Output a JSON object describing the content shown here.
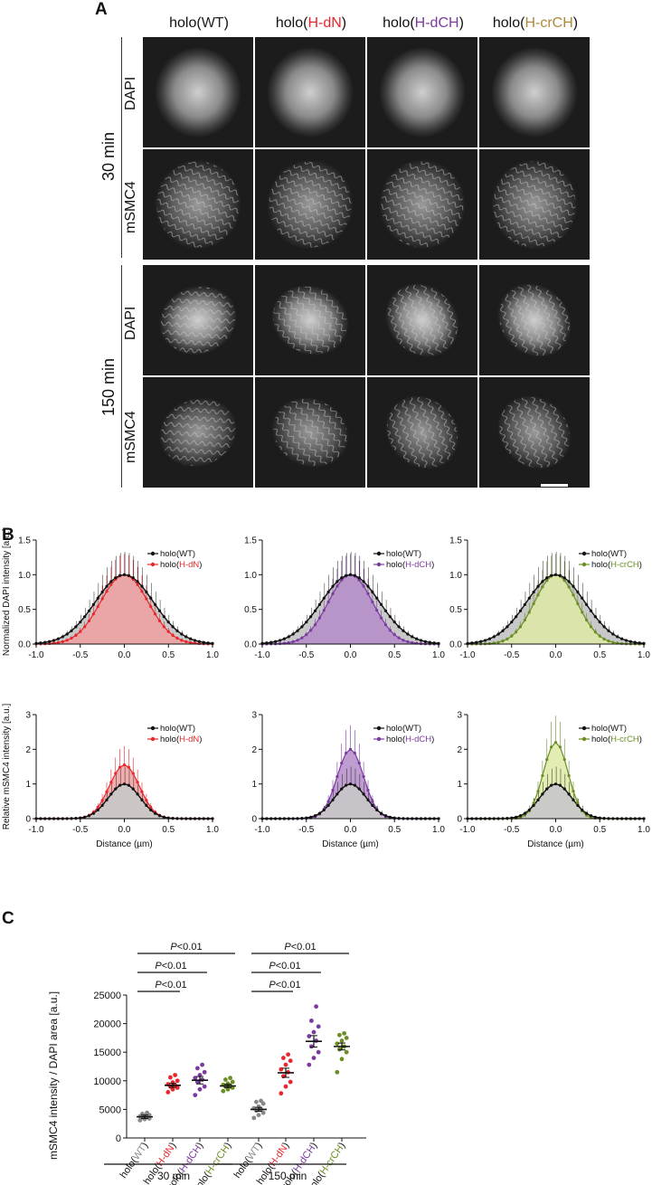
{
  "panels": {
    "A": "A",
    "B": "B",
    "C": "C"
  },
  "panelA": {
    "columns": [
      {
        "pre": "holo(",
        "mid": "WT",
        "post": ")",
        "color": "#222222"
      },
      {
        "pre": "holo(",
        "mid": "H-dN",
        "post": ")",
        "color": "#e8262b"
      },
      {
        "pre": "holo(",
        "mid": "H-dCH",
        "post": ")",
        "color": "#7a3aa0"
      },
      {
        "pre": "holo(",
        "mid": "H-crCH",
        "post": ")",
        "color": "#b08a3a"
      }
    ],
    "time_labels": [
      "30 min",
      "150 min"
    ],
    "row_labels": [
      "DAPI",
      "mSMC4",
      "DAPI",
      "mSMC4"
    ]
  },
  "chart_data": [
    {
      "type": "area",
      "ylabel": "Normalized DAPI intensity [a.u.]",
      "xlabel": "",
      "ylim": [
        0,
        1.5
      ],
      "xlim": [
        -1,
        1
      ],
      "yticks": [
        "0.0",
        "0.5",
        "1.0",
        "1.5"
      ],
      "xticks": [
        "-1.0",
        "-0.5",
        "0.0",
        "0.5",
        "1.0"
      ],
      "legend": [
        "holo(WT)",
        "holo(H-dN)"
      ],
      "legend_pre": "holo(",
      "legend_mid": "H-dN",
      "legend_post": ")",
      "color": "#e8262b",
      "fill": "#f0a0a0",
      "wt_sigma": 0.33,
      "mut_sigma": 0.27,
      "mut_peak": 1.0
    },
    {
      "type": "area",
      "ylabel": "",
      "xlabel": "",
      "ylim": [
        0,
        1.5
      ],
      "xlim": [
        -1,
        1
      ],
      "yticks": [
        "0.0",
        "0.5",
        "1.0",
        "1.5"
      ],
      "xticks": [
        "-1.0",
        "-0.5",
        "0.0",
        "0.5",
        "1.0"
      ],
      "legend": [
        "holo(WT)",
        "holo(H-dCH)"
      ],
      "legend_pre": "holo(",
      "legend_mid": "H-dCH",
      "legend_post": ")",
      "color": "#7a3aa0",
      "fill": "#b48cc8",
      "wt_sigma": 0.33,
      "mut_sigma": 0.25,
      "mut_peak": 1.0
    },
    {
      "type": "area",
      "ylabel": "",
      "xlabel": "",
      "ylim": [
        0,
        1.5
      ],
      "xlim": [
        -1,
        1
      ],
      "yticks": [
        "0.0",
        "0.5",
        "1.0",
        "1.5"
      ],
      "xticks": [
        "-1.0",
        "-0.5",
        "0.0",
        "0.5",
        "1.0"
      ],
      "legend": [
        "holo(WT)",
        "holo(H-crCH)"
      ],
      "legend_pre": "holo(",
      "legend_mid": "H-crCH",
      "legend_post": ")",
      "color": "#6b8e23",
      "fill": "#dde9a6",
      "wt_sigma": 0.33,
      "mut_sigma": 0.24,
      "mut_peak": 1.0
    },
    {
      "type": "area",
      "ylabel": "Relative mSMC4 intensity [a.u.]",
      "xlabel": "Distance (µm)",
      "ylim": [
        0,
        3
      ],
      "xlim": [
        -1,
        1
      ],
      "yticks": [
        "0",
        "1",
        "2",
        "3"
      ],
      "xticks": [
        "-1.0",
        "-0.5",
        "0.0",
        "0.5",
        "1.0"
      ],
      "legend": [
        "holo(WT)",
        "holo(H-dN)"
      ],
      "legend_pre": "holo(",
      "legend_mid": "H-dN",
      "legend_post": ")",
      "color": "#e8262b",
      "fill": "#f0a0a0",
      "wt_sigma": 0.18,
      "mut_sigma": 0.17,
      "mut_peak": 1.55
    },
    {
      "type": "area",
      "ylabel": "",
      "xlabel": "Distance (µm)",
      "ylim": [
        0,
        3
      ],
      "xlim": [
        -1,
        1
      ],
      "yticks": [
        "0",
        "1",
        "2",
        "3"
      ],
      "xticks": [
        "-1.0",
        "-0.5",
        "0.0",
        "0.5",
        "1.0"
      ],
      "legend": [
        "holo(WT)",
        "holo(H-dCH)"
      ],
      "legend_pre": "holo(",
      "legend_mid": "H-dCH",
      "legend_post": ")",
      "color": "#7a3aa0",
      "fill": "#b48cc8",
      "wt_sigma": 0.18,
      "mut_sigma": 0.15,
      "mut_peak": 2.0
    },
    {
      "type": "area",
      "ylabel": "",
      "xlabel": "Distance (µm)",
      "ylim": [
        0,
        3
      ],
      "xlim": [
        -1,
        1
      ],
      "yticks": [
        "0",
        "1",
        "2",
        "3"
      ],
      "xticks": [
        "-1.0",
        "-0.5",
        "0.0",
        "0.5",
        "1.0"
      ],
      "legend": [
        "holo(WT)",
        "holo(H-crCH)"
      ],
      "legend_pre": "holo(",
      "legend_mid": "H-crCH",
      "legend_post": ")",
      "color": "#6b8e23",
      "fill": "#dde9a6",
      "wt_sigma": 0.18,
      "mut_sigma": 0.14,
      "mut_peak": 2.2
    },
    {
      "type": "scatter",
      "ylabel": "mSMC4 intensity / DAPI area [a.u.]",
      "ylim": [
        0,
        25000
      ],
      "yticks": [
        "0",
        "5000",
        "10000",
        "15000",
        "20000",
        "25000"
      ],
      "groups": [
        {
          "pre": "holo(",
          "mid": "WT",
          "post": ")",
          "color": "#888888",
          "mean": 3700,
          "sem": 300,
          "values": [
            3100,
            3300,
            3400,
            3600,
            3700,
            3800,
            3900,
            4000,
            4200,
            4400
          ]
        },
        {
          "pre": "holo(",
          "mid": "H-dN",
          "post": ")",
          "color": "#e8262b",
          "mean": 9200,
          "sem": 350,
          "values": [
            8000,
            8500,
            8800,
            9000,
            9200,
            9400,
            9700,
            10000,
            10600,
            11000
          ]
        },
        {
          "pre": "holo(",
          "mid": "H-dCH",
          "post": ")",
          "color": "#7a3aa0",
          "mean": 10100,
          "sem": 650,
          "values": [
            7500,
            8500,
            9000,
            9800,
            10200,
            10500,
            11000,
            11500,
            12200,
            12800
          ]
        },
        {
          "pre": "holo(",
          "mid": "H-crCH",
          "post": ")",
          "color": "#6b8e23",
          "mean": 9100,
          "sem": 300,
          "values": [
            8200,
            8500,
            8800,
            9000,
            9100,
            9300,
            9500,
            9800,
            10200,
            10500
          ]
        },
        {
          "pre": "holo(",
          "mid": "WT",
          "post": ")",
          "color": "#888888",
          "mean": 5000,
          "sem": 350,
          "values": [
            3500,
            4000,
            4400,
            4800,
            5000,
            5200,
            5500,
            6000,
            6300,
            6500
          ]
        },
        {
          "pre": "holo(",
          "mid": "H-dN",
          "post": ")",
          "color": "#e8262b",
          "mean": 11400,
          "sem": 800,
          "values": [
            7800,
            9000,
            9800,
            10800,
            11500,
            12000,
            12800,
            13500,
            14000,
            14600
          ]
        },
        {
          "pre": "holo(",
          "mid": "H-dCH",
          "post": ")",
          "color": "#7a3aa0",
          "mean": 16900,
          "sem": 1000,
          "values": [
            12800,
            14000,
            15000,
            16000,
            17000,
            17800,
            18500,
            19500,
            20500,
            23000
          ]
        },
        {
          "pre": "holo(",
          "mid": "H-crCH",
          "post": ")",
          "color": "#6b8e23",
          "mean": 16000,
          "sem": 600,
          "values": [
            11500,
            13800,
            15000,
            15500,
            16000,
            16500,
            17000,
            17500,
            18000,
            18300
          ]
        }
      ],
      "time_groups": [
        "30 min",
        "150 min"
      ],
      "stats": [
        {
          "from": 0,
          "to": 1,
          "level": 0,
          "text": "<0.01"
        },
        {
          "from": 0,
          "to": 2,
          "level": 1,
          "text": "<0.01"
        },
        {
          "from": 0,
          "to": 3,
          "level": 2,
          "text": "<0.01"
        },
        {
          "from": 4,
          "to": 5,
          "level": 0,
          "text": "<0.01"
        },
        {
          "from": 4,
          "to": 6,
          "level": 1,
          "text": "<0.01"
        },
        {
          "from": 4,
          "to": 7,
          "level": 2,
          "text": "<0.01"
        }
      ],
      "p_letter": "P"
    }
  ]
}
